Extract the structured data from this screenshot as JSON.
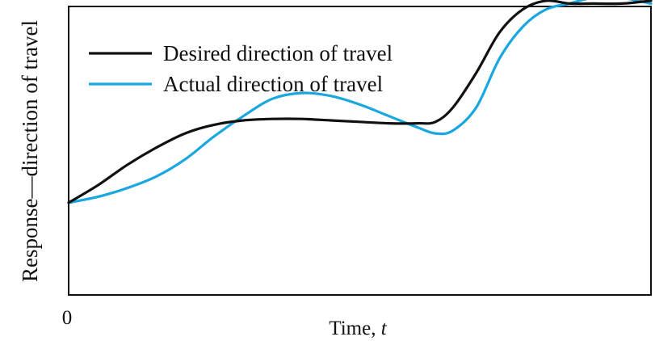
{
  "chart_data": {
    "type": "line",
    "title": "",
    "xlabel": "Time, t",
    "xlabel_parts": {
      "main": "Time, ",
      "var": "t"
    },
    "ylabel": "Response—direction of travel",
    "x_tick_labels": [
      "0"
    ],
    "xlim": [
      0,
      100
    ],
    "ylim": [
      0,
      100
    ],
    "grid": false,
    "legend_position": "top-left",
    "series": [
      {
        "name": "Desired direction of travel",
        "color": "#111111",
        "x": [
          0,
          5,
          10,
          15,
          20,
          25,
          30,
          35,
          40,
          45,
          50,
          55,
          60,
          63,
          66,
          70,
          74,
          78,
          82,
          86,
          90,
          95,
          100
        ],
        "y": [
          32,
          38,
          45,
          51,
          56,
          59,
          60.5,
          61,
          61,
          60.5,
          60,
          59.5,
          59.5,
          60,
          65,
          77,
          91,
          99,
          102,
          101,
          101,
          101,
          102
        ]
      },
      {
        "name": "Actual direction of travel",
        "color": "#1aa7e0",
        "x": [
          0,
          5,
          10,
          15,
          20,
          25,
          30,
          35,
          40,
          45,
          50,
          55,
          60,
          63,
          66,
          70,
          74,
          78,
          82,
          86,
          90,
          95,
          100
        ],
        "y": [
          32,
          34,
          37,
          41,
          47,
          55,
          62,
          68,
          70,
          69,
          66,
          62,
          58,
          56,
          57,
          65,
          82,
          93,
          99,
          101,
          103,
          103,
          101
        ]
      }
    ]
  }
}
